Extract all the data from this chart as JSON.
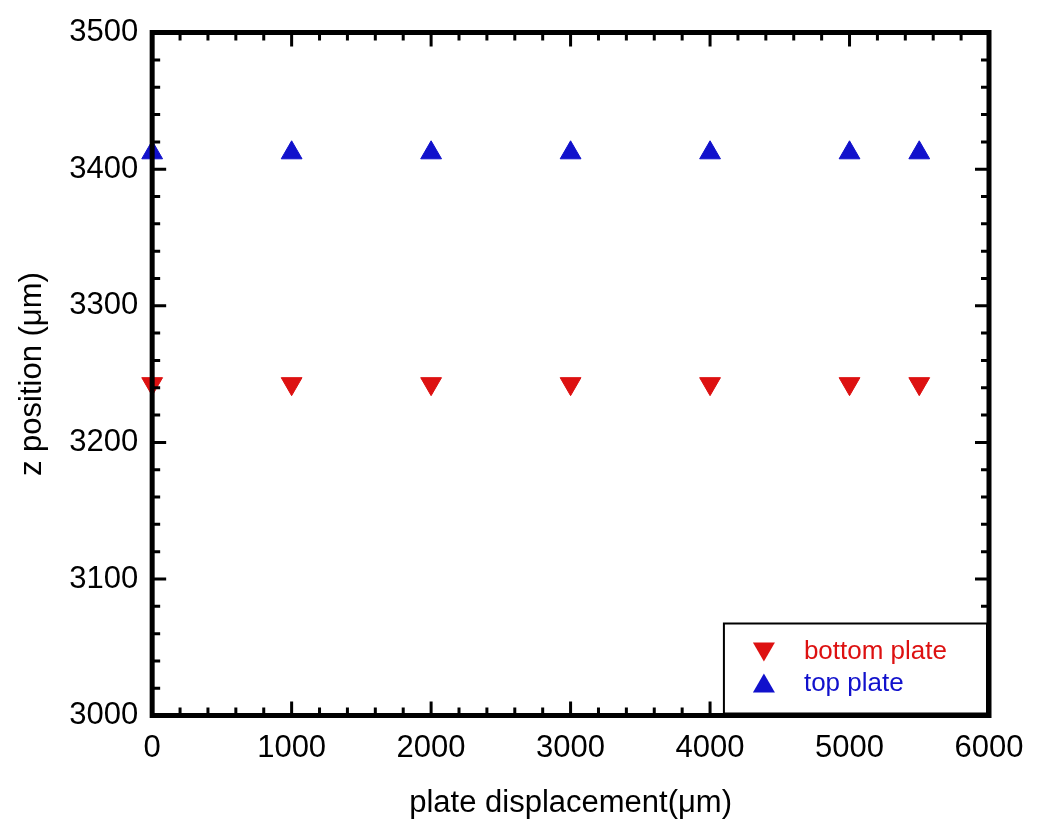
{
  "chart_data": {
    "type": "scatter",
    "xlabel": "plate displacement(μm)",
    "ylabel": "z position (μm)",
    "x": [
      0,
      1000,
      2000,
      3000,
      4000,
      5000,
      5500
    ],
    "series": [
      {
        "name": "bottom plate",
        "color": "#dd1111",
        "marker": "triangle-down",
        "values": [
          3243,
          3243,
          3243,
          3243,
          3243,
          3243,
          3243
        ]
      },
      {
        "name": "top plate",
        "color": "#1111cc",
        "marker": "triangle",
        "values": [
          3412,
          3412,
          3412,
          3412,
          3412,
          3412,
          3412
        ]
      }
    ],
    "xlim": [
      0,
      6000
    ],
    "xticks": [
      0,
      1000,
      2000,
      3000,
      4000,
      5000,
      6000
    ],
    "ylim": [
      3000,
      3500
    ],
    "yticks": [
      3000,
      3100,
      3200,
      3300,
      3400,
      3500
    ],
    "grid": false,
    "legend": "bottom right"
  }
}
